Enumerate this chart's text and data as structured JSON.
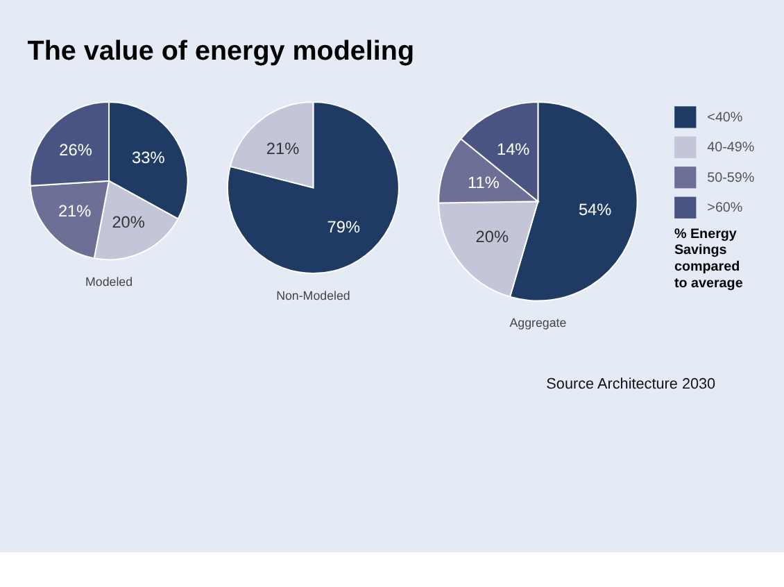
{
  "chart_data": [
    {
      "type": "pie",
      "title": "The value of energy modeling",
      "xlabel": "Modeled",
      "categories": [
        "<40%",
        "40-49%",
        "50-59%",
        ">60%"
      ],
      "values": [
        33,
        20,
        21,
        26
      ],
      "value_labels": [
        "33%",
        "20%",
        "21%",
        "26%"
      ],
      "colors": [
        "#1f3a63",
        "#c3c5d8",
        "#6d7096",
        "#4a5482"
      ],
      "legend": "right",
      "legend_title": "% Energy Savings compared to average"
    },
    {
      "type": "pie",
      "xlabel": "Non-Modeled",
      "categories": [
        null,
        null
      ],
      "values": [
        79,
        21
      ],
      "value_labels": [
        "79%",
        "21%"
      ],
      "colors": [
        "#1f3a63",
        "#c3c5d8"
      ]
    },
    {
      "type": "pie",
      "xlabel": "Aggregate",
      "categories": [
        null,
        null,
        null,
        null
      ],
      "values": [
        54,
        20,
        11,
        14
      ],
      "value_labels": [
        "54%",
        "20%",
        "11%",
        "14%"
      ],
      "colors": [
        "#1f3a63",
        "#c3c5d8",
        "#6d7096",
        "#4a5482"
      ],
      "annotations": [
        "Source Architecture 2030"
      ]
    }
  ]
}
